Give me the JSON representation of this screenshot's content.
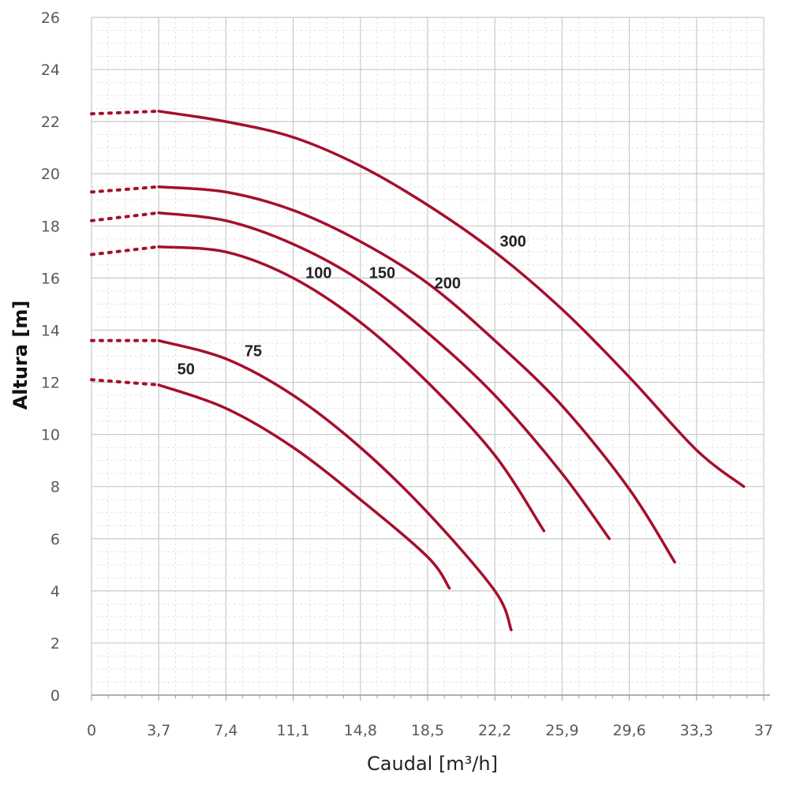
{
  "chart_data": {
    "type": "line",
    "title": "",
    "xlabel": "Caudal [m³/h]",
    "ylabel": "Altura [m]",
    "xlim": [
      0,
      37
    ],
    "ylim": [
      0,
      26
    ],
    "x_ticks": [
      "0",
      "3,7",
      "7,4",
      "11,1",
      "14,8",
      "18,5",
      "22,2",
      "25,9",
      "29,6",
      "33,3",
      "37"
    ],
    "y_ticks": [
      "0",
      "2",
      "4",
      "6",
      "8",
      "10",
      "12",
      "14",
      "16",
      "18",
      "20",
      "22",
      "24",
      "26"
    ],
    "grid": true,
    "legend": "none",
    "dotted_until_x": 3.7,
    "line_color": "#a50f2d",
    "series": [
      {
        "name": "50",
        "x": [
          0,
          3.7,
          7.4,
          11.1,
          14.8,
          18.5,
          19.7
        ],
        "values": [
          12.1,
          11.9,
          11.0,
          9.5,
          7.5,
          5.3,
          4.1
        ]
      },
      {
        "name": "75",
        "x": [
          0,
          3.7,
          7.4,
          11.1,
          14.8,
          18.5,
          22.2,
          23.1
        ],
        "values": [
          13.6,
          13.6,
          12.9,
          11.5,
          9.5,
          7.0,
          4.0,
          2.5
        ]
      },
      {
        "name": "100",
        "x": [
          0,
          3.7,
          7.4,
          11.1,
          14.8,
          18.5,
          22.2,
          24.9
        ],
        "values": [
          16.9,
          17.2,
          17.0,
          16.0,
          14.3,
          12.0,
          9.2,
          6.3
        ]
      },
      {
        "name": "150",
        "x": [
          0,
          3.7,
          7.4,
          11.1,
          14.8,
          18.5,
          22.2,
          25.9,
          28.5
        ],
        "values": [
          18.2,
          18.5,
          18.2,
          17.3,
          15.9,
          13.9,
          11.5,
          8.5,
          6.0
        ]
      },
      {
        "name": "200",
        "x": [
          0,
          3.7,
          7.4,
          11.1,
          14.8,
          18.5,
          22.2,
          25.9,
          29.6,
          32.1
        ],
        "values": [
          19.3,
          19.5,
          19.3,
          18.6,
          17.4,
          15.8,
          13.6,
          11.1,
          7.9,
          5.1
        ]
      },
      {
        "name": "300",
        "x": [
          0,
          3.7,
          7.4,
          11.1,
          14.8,
          18.5,
          22.2,
          25.9,
          29.6,
          33.3,
          35.9
        ],
        "values": [
          22.3,
          22.4,
          22.0,
          21.4,
          20.3,
          18.8,
          17.0,
          14.8,
          12.2,
          9.4,
          8.0
        ]
      }
    ],
    "labels": [
      {
        "text": "50",
        "x": 5.2,
        "y": 12.3
      },
      {
        "text": "75",
        "x": 8.9,
        "y": 13.0
      },
      {
        "text": "100",
        "x": 12.5,
        "y": 16.0
      },
      {
        "text": "150",
        "x": 16.0,
        "y": 16.0
      },
      {
        "text": "200",
        "x": 19.6,
        "y": 15.6
      },
      {
        "text": "300",
        "x": 23.2,
        "y": 17.2
      }
    ]
  }
}
